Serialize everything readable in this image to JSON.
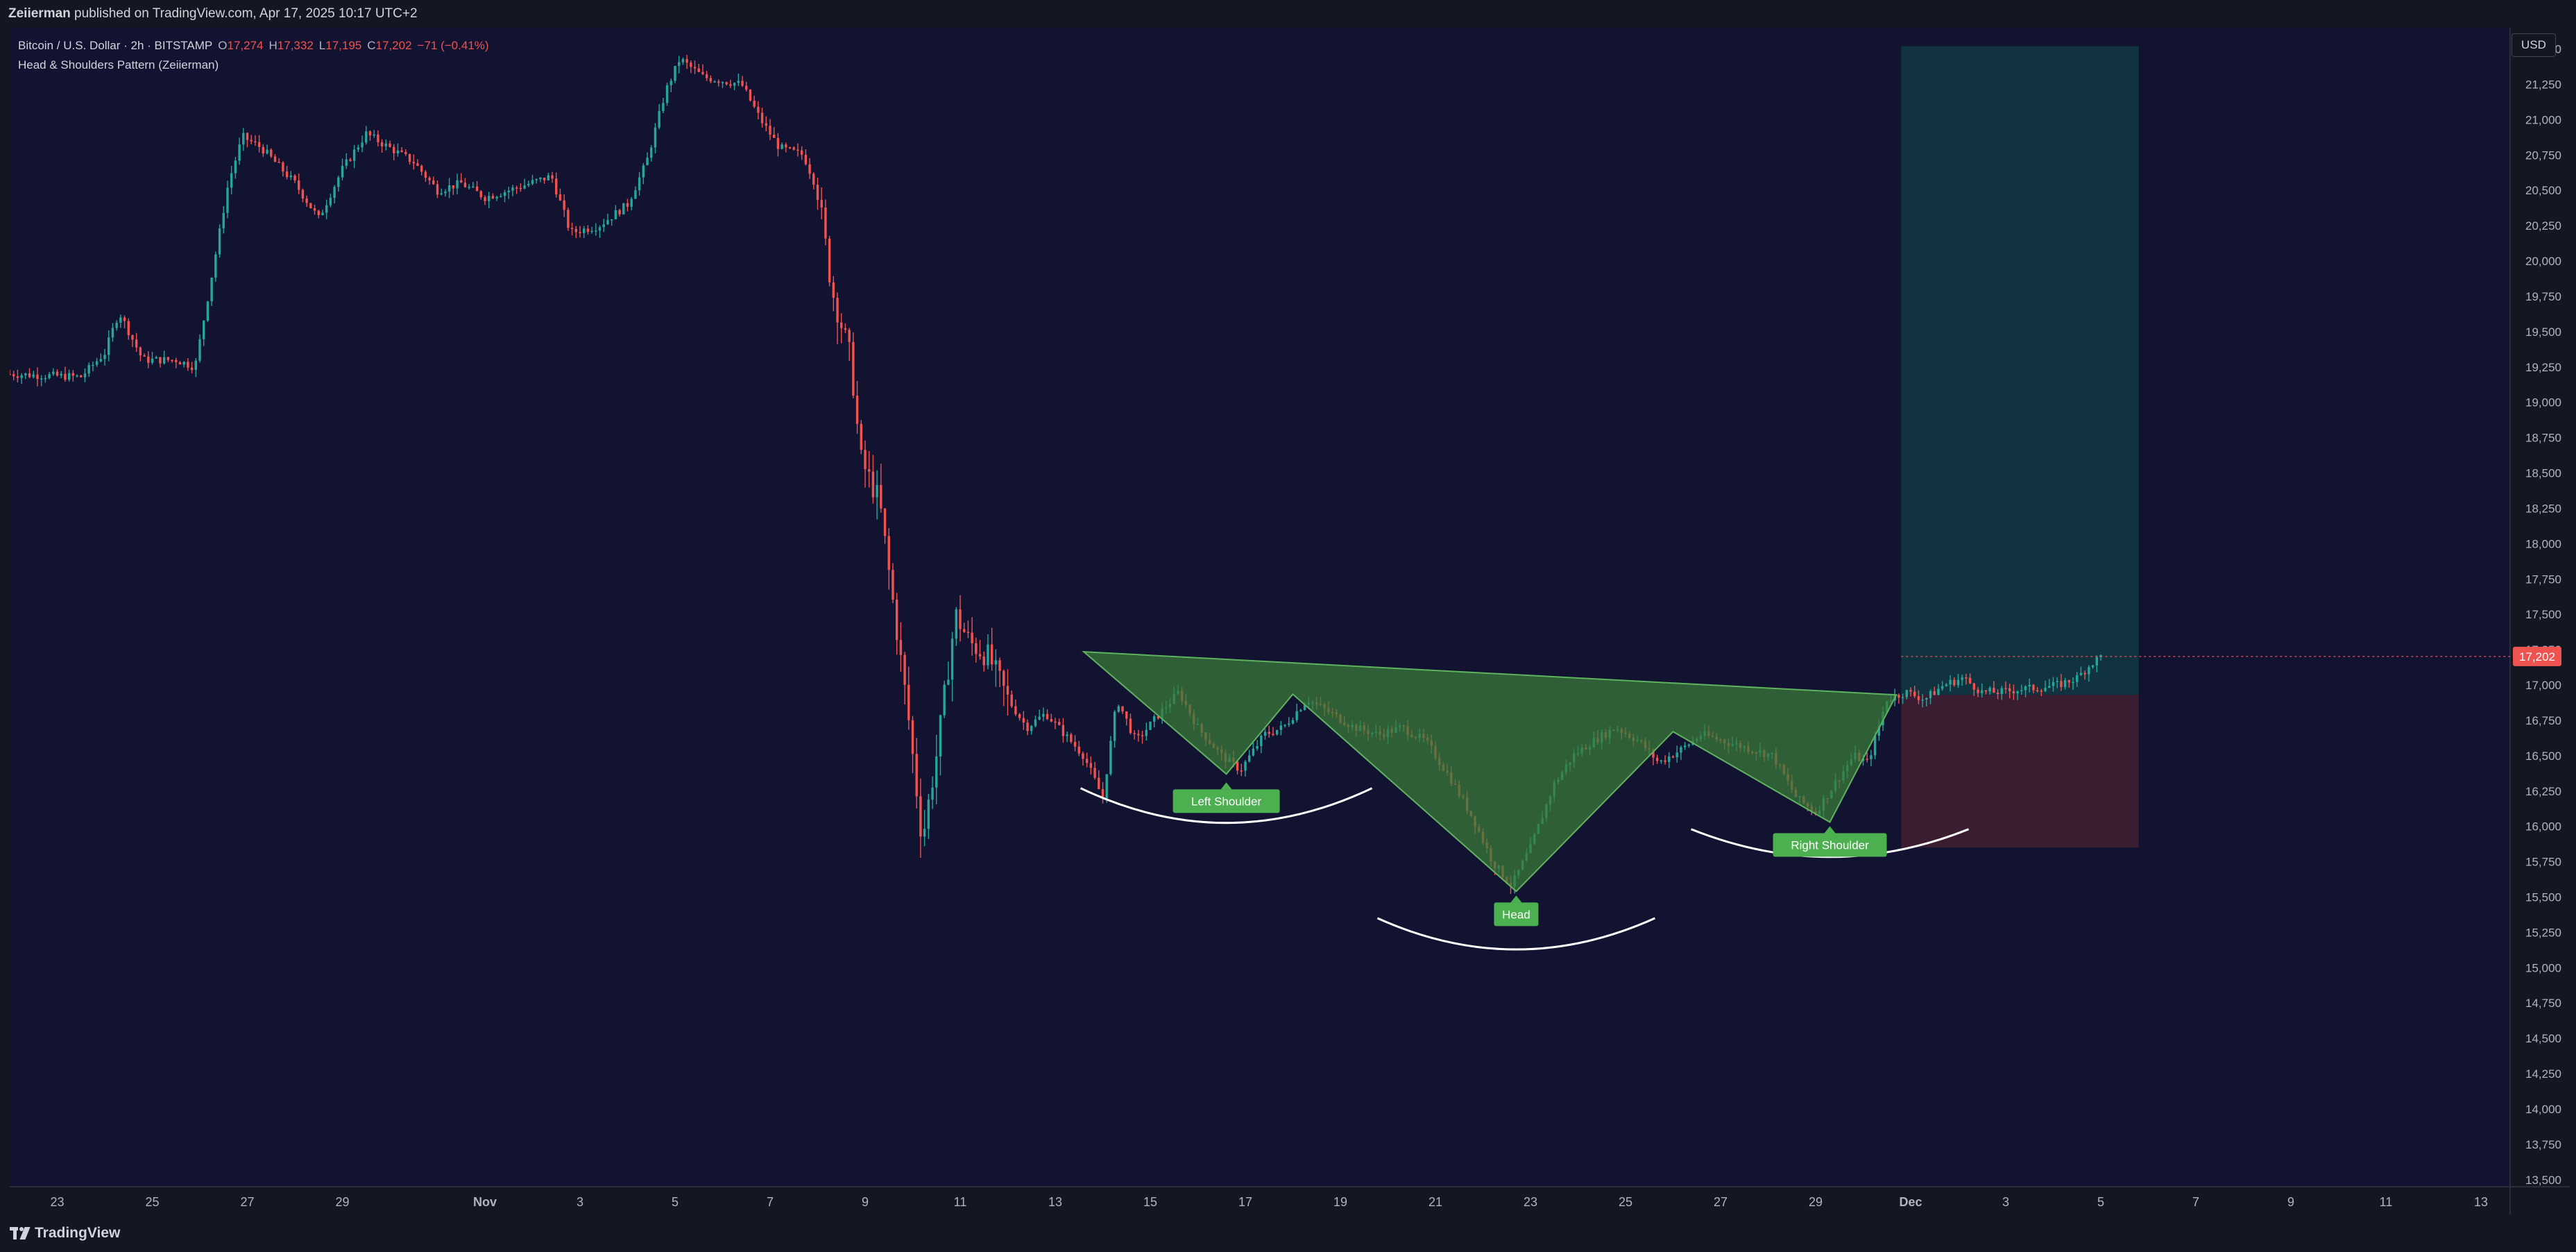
{
  "header": {
    "publisher": "Zeiierman",
    "publish_text": "published on TradingView.com, Apr 17, 2025 10:17 UTC+2"
  },
  "legend": {
    "symbol": "Bitcoin / U.S. Dollar · 2h · BITSTAMP",
    "o_label": "O",
    "o_value": "17,274",
    "h_label": "H",
    "h_value": "17,332",
    "l_label": "L",
    "l_value": "17,195",
    "c_label": "C",
    "c_value": "17,202",
    "change": "−71 (−0.41%)",
    "indicator": "Head & Shoulders Pattern (Zeiierman)"
  },
  "toolbar": {
    "currency": "USD"
  },
  "footer": {
    "brand": "TradingView"
  },
  "colors": {
    "background": "#131722",
    "plot_background": "#111330",
    "up": "#26a69a",
    "down": "#ef5350",
    "pattern_fill": "#3a7a3a",
    "label_green": "#4caf50",
    "target_zone": "#10333f",
    "stop_zone": "#3a1d30",
    "last_price": "#ef5350"
  },
  "chart_data": {
    "type": "candlestick",
    "y_axis_position": "right",
    "ylim": [
      13450,
      21650
    ],
    "y_ticks": [
      13500,
      13750,
      14000,
      14250,
      14500,
      14750,
      15000,
      15250,
      15500,
      15750,
      16000,
      16250,
      16500,
      16750,
      17000,
      17250,
      17500,
      17750,
      18000,
      18250,
      18500,
      18750,
      19000,
      19250,
      19500,
      19750,
      20000,
      20250,
      20500,
      20750,
      21000,
      21250,
      21500
    ],
    "x_range_days": [
      0,
      58.8
    ],
    "x_ticks": [
      {
        "day": 1,
        "label": "23"
      },
      {
        "day": 3,
        "label": "25"
      },
      {
        "day": 5,
        "label": "27"
      },
      {
        "day": 7,
        "label": "29"
      },
      {
        "day": 10,
        "label": "Nov"
      },
      {
        "day": 12,
        "label": "3"
      },
      {
        "day": 14,
        "label": "5"
      },
      {
        "day": 16,
        "label": "7"
      },
      {
        "day": 18,
        "label": "9"
      },
      {
        "day": 20,
        "label": "11"
      },
      {
        "day": 22,
        "label": "13"
      },
      {
        "day": 24,
        "label": "15"
      },
      {
        "day": 26,
        "label": "17"
      },
      {
        "day": 28,
        "label": "19"
      },
      {
        "day": 30,
        "label": "21"
      },
      {
        "day": 32,
        "label": "23"
      },
      {
        "day": 34,
        "label": "25"
      },
      {
        "day": 36,
        "label": "27"
      },
      {
        "day": 38,
        "label": "29"
      },
      {
        "day": 40,
        "label": "Dec"
      },
      {
        "day": 42,
        "label": "3"
      },
      {
        "day": 44,
        "label": "5"
      },
      {
        "day": 46,
        "label": "7"
      },
      {
        "day": 48,
        "label": "9"
      },
      {
        "day": 50,
        "label": "11"
      },
      {
        "day": 52,
        "label": "13"
      }
    ],
    "price_path": [
      [
        0,
        19200
      ],
      [
        1.5,
        19180
      ],
      [
        2.0,
        19350
      ],
      [
        2.3,
        19640
      ],
      [
        2.8,
        19300
      ],
      [
        3.5,
        19300
      ],
      [
        3.9,
        19250
      ],
      [
        4.2,
        19800
      ],
      [
        4.6,
        20550
      ],
      [
        4.9,
        20880
      ],
      [
        5.3,
        20800
      ],
      [
        6.0,
        20550
      ],
      [
        6.5,
        20300
      ],
      [
        7.0,
        20650
      ],
      [
        7.5,
        20900
      ],
      [
        8.0,
        20800
      ],
      [
        8.5,
        20700
      ],
      [
        9.0,
        20500
      ],
      [
        9.5,
        20550
      ],
      [
        10.0,
        20450
      ],
      [
        10.5,
        20500
      ],
      [
        11.4,
        20600
      ],
      [
        11.8,
        20200
      ],
      [
        12.4,
        20250
      ],
      [
        13.0,
        20400
      ],
      [
        13.4,
        20700
      ],
      [
        13.8,
        21200
      ],
      [
        14.1,
        21430
      ],
      [
        14.6,
        21300
      ],
      [
        15.4,
        21250
      ],
      [
        15.8,
        21000
      ],
      [
        16.2,
        20800
      ],
      [
        16.7,
        20750
      ],
      [
        17.0,
        20500
      ],
      [
        17.3,
        19800
      ],
      [
        17.7,
        19300
      ],
      [
        17.9,
        18600
      ],
      [
        18.3,
        18300
      ],
      [
        18.7,
        17300
      ],
      [
        18.9,
        16800
      ],
      [
        19.2,
        15900
      ],
      [
        19.5,
        16500
      ],
      [
        19.9,
        17500
      ],
      [
        20.2,
        17300
      ],
      [
        20.6,
        17200
      ],
      [
        21.0,
        16900
      ],
      [
        21.4,
        16700
      ],
      [
        21.8,
        16800
      ],
      [
        22.2,
        16650
      ],
      [
        22.6,
        16500
      ],
      [
        23.0,
        16200
      ],
      [
        23.3,
        16900
      ],
      [
        23.7,
        16600
      ],
      [
        24.2,
        16800
      ],
      [
        24.6,
        16950
      ],
      [
        25.0,
        16700
      ],
      [
        25.5,
        16500
      ],
      [
        25.9,
        16400
      ],
      [
        26.4,
        16650
      ],
      [
        26.8,
        16700
      ],
      [
        27.3,
        16900
      ],
      [
        27.8,
        16800
      ],
      [
        28.3,
        16700
      ],
      [
        28.8,
        16650
      ],
      [
        29.3,
        16700
      ],
      [
        29.8,
        16600
      ],
      [
        30.3,
        16350
      ],
      [
        30.8,
        16050
      ],
      [
        31.2,
        15750
      ],
      [
        31.6,
        15580
      ],
      [
        32.0,
        15850
      ],
      [
        32.5,
        16300
      ],
      [
        32.9,
        16500
      ],
      [
        33.3,
        16600
      ],
      [
        33.8,
        16700
      ],
      [
        34.3,
        16600
      ],
      [
        34.7,
        16450
      ],
      [
        35.2,
        16550
      ],
      [
        35.6,
        16650
      ],
      [
        36.1,
        16600
      ],
      [
        36.6,
        16550
      ],
      [
        37.1,
        16500
      ],
      [
        37.6,
        16200
      ],
      [
        38.0,
        16100
      ],
      [
        38.4,
        16300
      ],
      [
        38.8,
        16500
      ],
      [
        39.1,
        16450
      ],
      [
        39.5,
        16900
      ],
      [
        39.9,
        16950
      ],
      [
        40.3,
        16900
      ],
      [
        40.7,
        17000
      ],
      [
        41.1,
        17050
      ],
      [
        41.5,
        16950
      ],
      [
        41.9,
        16950
      ],
      [
        42.3,
        16970
      ],
      [
        42.7,
        16980
      ],
      [
        43.1,
        17000
      ],
      [
        43.5,
        17050
      ],
      [
        43.8,
        17150
      ],
      [
        44.0,
        17202
      ]
    ],
    "last_price": 17202,
    "last_price_label": "17,202",
    "pattern": {
      "name": "Inverse Head & Shoulders",
      "neckline_left": {
        "day": 22.6,
        "price": 17235
      },
      "neckline_right": {
        "day": 39.7,
        "price": 16930
      },
      "left_shoulder": {
        "day": 25.6,
        "price": 16370,
        "label": "Left Shoulder"
      },
      "mid_left_peak": {
        "day": 27.0,
        "price": 16935
      },
      "head": {
        "day": 31.7,
        "price": 15540,
        "label": "Head"
      },
      "mid_right_peak": {
        "day": 35.0,
        "price": 16670
      },
      "right_shoulder": {
        "day": 38.3,
        "price": 16030,
        "label": "Right Shoulder"
      }
    },
    "position": {
      "start_day": 39.8,
      "end_day": 44.8,
      "entry": 16930,
      "target": 21520,
      "stop": 15850
    }
  }
}
